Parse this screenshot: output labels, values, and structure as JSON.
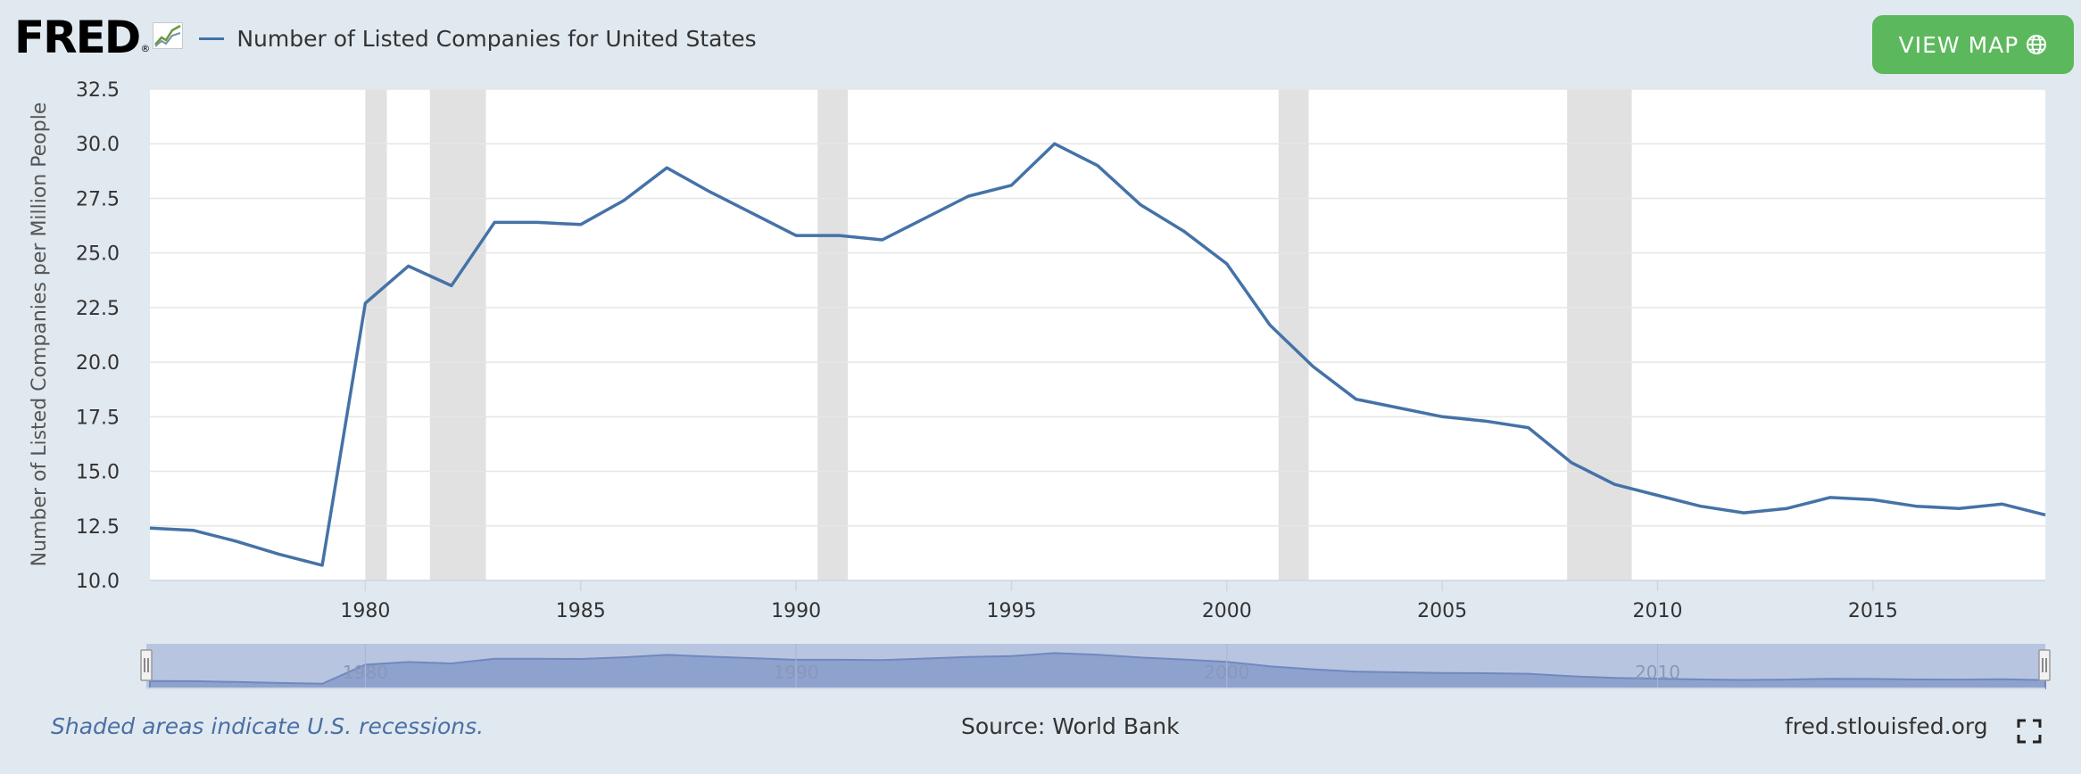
{
  "header": {
    "logo_text": "FRED",
    "logo_reg": "®",
    "legend_label": "Number of Listed Companies for United States",
    "series_color": "#4572a7"
  },
  "view_map_label": "VIEW MAP",
  "footer": {
    "note": "Shaded areas indicate U.S. recessions.",
    "source": "Source: World Bank",
    "url": "fred.stlouisfed.org"
  },
  "chart_data": {
    "type": "line",
    "title": "",
    "xlabel": "",
    "ylabel": "Number of Listed Companies per Million People",
    "xlim": [
      1975,
      2019
    ],
    "ylim": [
      10,
      32.5
    ],
    "x_ticks": [
      1980,
      1985,
      1990,
      1995,
      2000,
      2005,
      2010,
      2015
    ],
    "y_ticks": [
      "10.0",
      "12.5",
      "15.0",
      "17.5",
      "20.0",
      "22.5",
      "25.0",
      "27.5",
      "30.0",
      "32.5"
    ],
    "grid": true,
    "recessions": [
      [
        1980.0,
        1980.5
      ],
      [
        1981.5,
        1982.8
      ],
      [
        1990.5,
        1991.2
      ],
      [
        2001.2,
        2001.9
      ],
      [
        2007.9,
        2009.4
      ]
    ],
    "navigator": {
      "ticks": [
        1980,
        1990,
        2000,
        2010
      ]
    },
    "series": [
      {
        "name": "Number of Listed Companies for United States",
        "color": "#4572a7",
        "x": [
          1975,
          1976,
          1977,
          1978,
          1979,
          1980,
          1981,
          1982,
          1983,
          1984,
          1985,
          1986,
          1987,
          1988,
          1989,
          1990,
          1991,
          1992,
          1993,
          1994,
          1995,
          1996,
          1997,
          1998,
          1999,
          2000,
          2001,
          2002,
          2003,
          2004,
          2005,
          2006,
          2007,
          2008,
          2009,
          2010,
          2011,
          2012,
          2013,
          2014,
          2015,
          2016,
          2017,
          2018,
          2019
        ],
        "values": [
          12.4,
          12.3,
          11.8,
          11.2,
          10.7,
          22.7,
          24.4,
          23.5,
          26.4,
          26.4,
          26.3,
          27.4,
          28.9,
          27.8,
          26.8,
          25.8,
          25.8,
          25.6,
          26.6,
          27.6,
          28.1,
          30.0,
          29.0,
          27.2,
          26.0,
          24.5,
          21.7,
          19.8,
          18.3,
          17.9,
          17.5,
          17.3,
          17.0,
          15.4,
          14.4,
          13.9,
          13.4,
          13.1,
          13.3,
          13.8,
          13.7,
          13.4,
          13.3,
          13.5,
          13.0
        ]
      }
    ]
  }
}
